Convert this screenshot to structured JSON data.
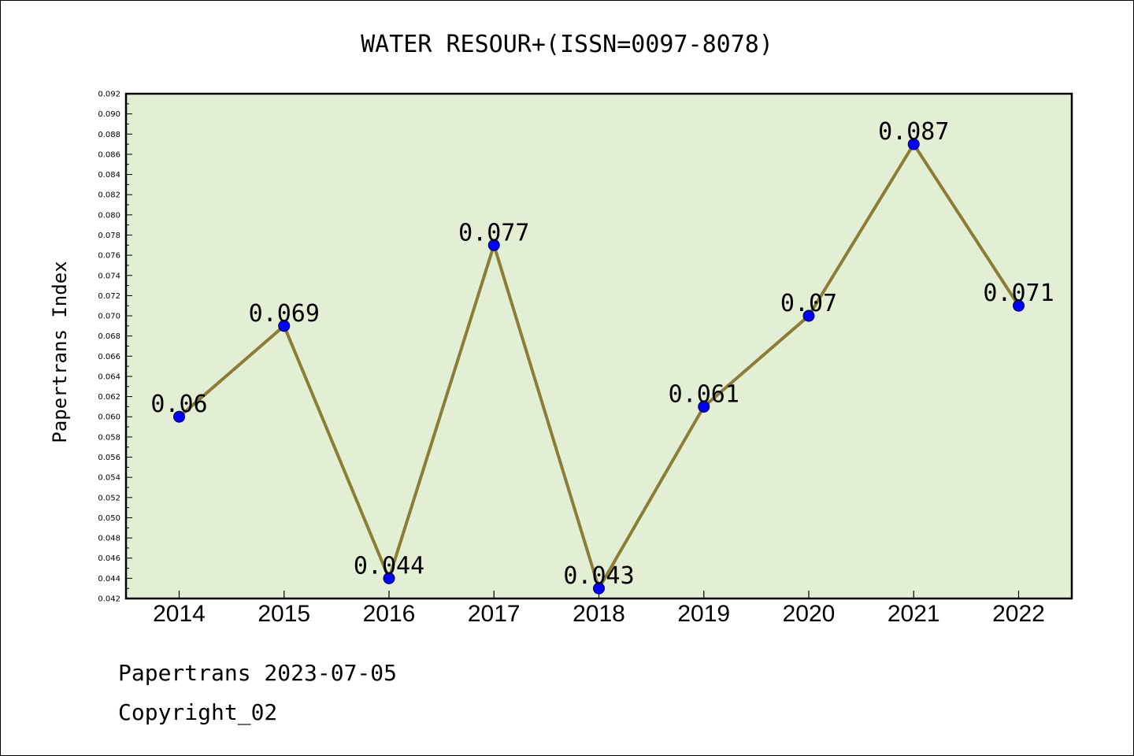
{
  "chart_data": {
    "type": "line",
    "title": "WATER RESOUR+(ISSN=0097-8078)",
    "xlabel": "",
    "ylabel": "Papertrans Index",
    "categories": [
      "2014",
      "2015",
      "2016",
      "2017",
      "2018",
      "2019",
      "2020",
      "2021",
      "2022"
    ],
    "values": [
      0.06,
      0.069,
      0.044,
      0.077,
      0.043,
      0.061,
      0.07,
      0.087,
      0.071
    ],
    "data_labels": [
      "0.06",
      "0.069",
      "0.044",
      "0.077",
      "0.043",
      "0.061",
      "0.07",
      "0.087",
      "0.071"
    ],
    "ylim": [
      0.042,
      0.092
    ],
    "yticks": [
      "0.042",
      "0.044",
      "0.046",
      "0.048",
      "0.050",
      "0.052",
      "0.054",
      "0.056",
      "0.058",
      "0.060",
      "0.062",
      "0.064",
      "0.066",
      "0.068",
      "0.070",
      "0.072",
      "0.074",
      "0.076",
      "0.078",
      "0.080",
      "0.082",
      "0.084",
      "0.086",
      "0.088",
      "0.090",
      "0.092"
    ],
    "grid": false,
    "legend": "none",
    "colors": {
      "plot_background": "#e2efd5",
      "line": "#8b7d35",
      "marker": "#0000ff"
    }
  },
  "footer": {
    "line1": "Papertrans 2023-07-05",
    "line2": "Copyright_02"
  }
}
